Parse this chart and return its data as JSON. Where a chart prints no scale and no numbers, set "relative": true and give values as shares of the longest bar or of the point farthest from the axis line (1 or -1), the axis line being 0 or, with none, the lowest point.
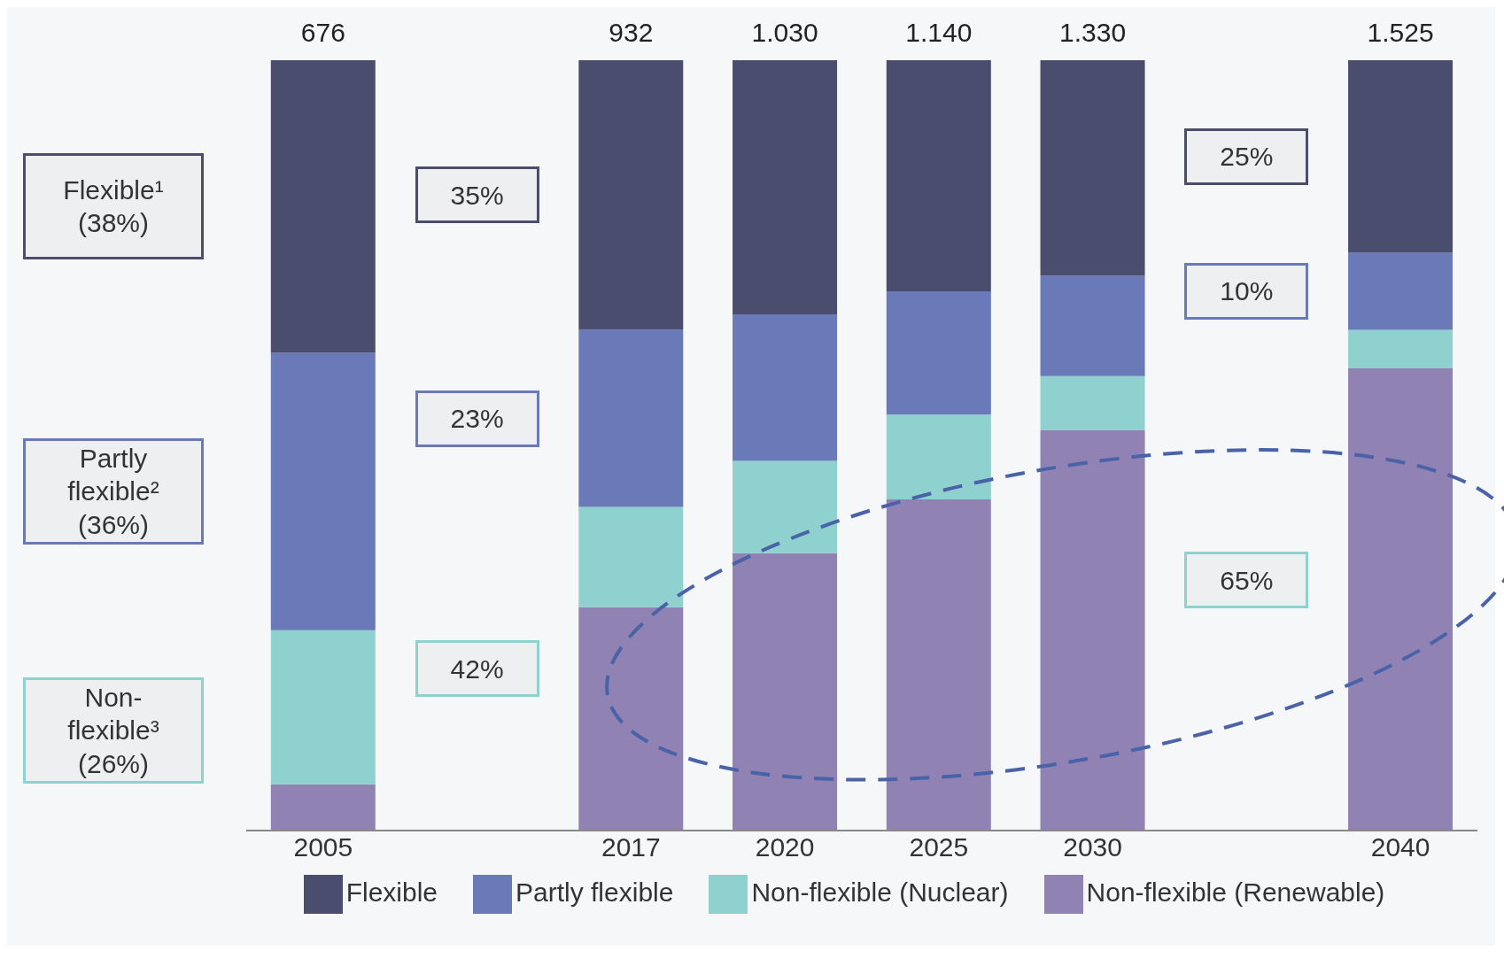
{
  "chart_data": {
    "type": "bar",
    "stacked": true,
    "relative": true,
    "categories": [
      "2005",
      null,
      "2017",
      "2020",
      "2025",
      "2030",
      null,
      "2040"
    ],
    "series": [
      {
        "name": "Non-flexible (Renewable)",
        "color": "#9083b4",
        "values": [
          0.06,
          null,
          0.29,
          0.36,
          0.43,
          0.52,
          null,
          0.6
        ]
      },
      {
        "name": "Non-flexible (Nuclear)",
        "color": "#8ed1cf",
        "values": [
          0.2,
          null,
          0.13,
          0.12,
          0.11,
          0.07,
          null,
          0.05
        ]
      },
      {
        "name": "Partly flexible",
        "color": "#6a7ab8",
        "values": [
          0.36,
          null,
          0.23,
          0.19,
          0.16,
          0.13,
          null,
          0.1
        ]
      },
      {
        "name": "Flexible",
        "color": "#4a4d6e",
        "values": [
          0.38,
          null,
          0.35,
          0.33,
          0.3,
          0.28,
          null,
          0.25
        ]
      }
    ],
    "annotations": [
      "Non-flexible³ (26%)",
      "Partly flexible² (36%)",
      "Flexible¹ (38%)",
      "42%",
      "23%",
      "35%",
      "65%",
      "10%",
      "25%",
      {
        "text": "676",
        "x": "2005",
        "y": 1
      },
      {
        "text": "932",
        "x": "2017",
        "y": 1
      },
      {
        "text": "1.030",
        "x": "2020",
        "y": 1
      },
      {
        "text": "1.140",
        "x": "2025",
        "y": 1
      },
      {
        "text": "1.330",
        "x": "2030",
        "y": 1
      },
      {
        "text": "1.525",
        "x": "2040",
        "y": 1
      }
    ],
    "legend": "bottom"
  }
}
